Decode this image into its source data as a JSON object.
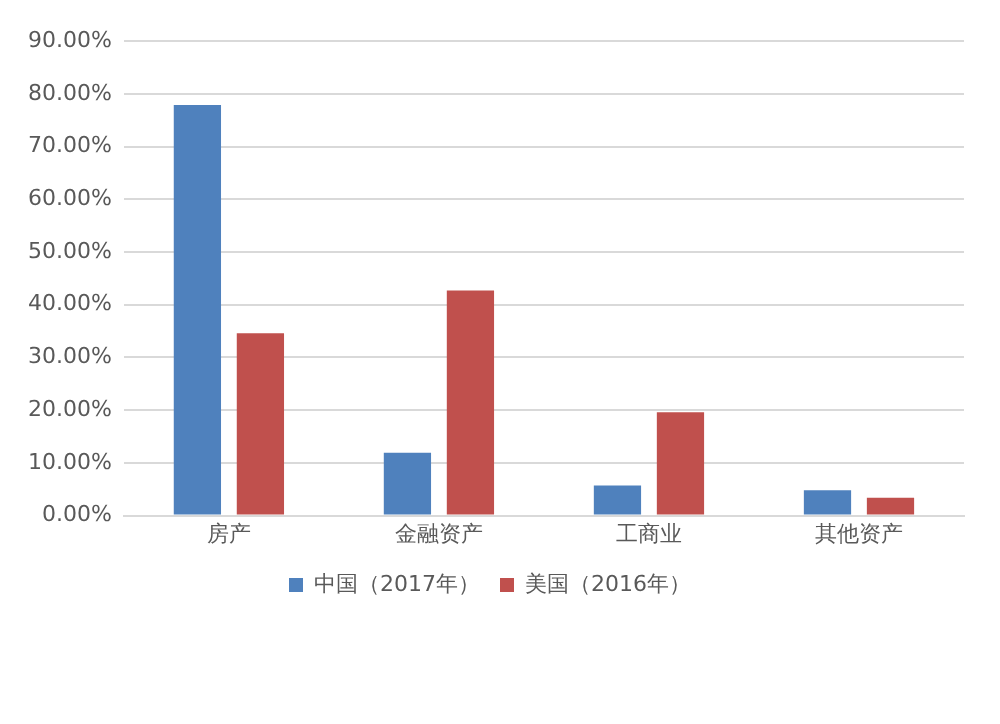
{
  "chart_data": {
    "type": "bar",
    "categories": [
      "房产",
      "金融资产",
      "工商业",
      "其他资产"
    ],
    "series": [
      {
        "name": "中国（2017年）",
        "color": "#4f81bd",
        "values": [
          77.9,
          11.9,
          5.7,
          4.8
        ]
      },
      {
        "name": "美国（2016年）",
        "color": "#c0504d",
        "values": [
          34.6,
          42.7,
          19.6,
          3.4
        ]
      }
    ],
    "ylim": [
      0,
      90
    ],
    "yticks": [
      {
        "value": 0,
        "label": "0.00%"
      },
      {
        "value": 10,
        "label": "10.00%"
      },
      {
        "value": 20,
        "label": "20.00%"
      },
      {
        "value": 30,
        "label": "30.00%"
      },
      {
        "value": 40,
        "label": "40.00%"
      },
      {
        "value": 50,
        "label": "50.00%"
      },
      {
        "value": 60,
        "label": "60.00%"
      },
      {
        "value": 70,
        "label": "70.00%"
      },
      {
        "value": 80,
        "label": "80.00%"
      },
      {
        "value": 90,
        "label": "90.00%"
      }
    ],
    "grid": "y",
    "legend": "bottom"
  }
}
